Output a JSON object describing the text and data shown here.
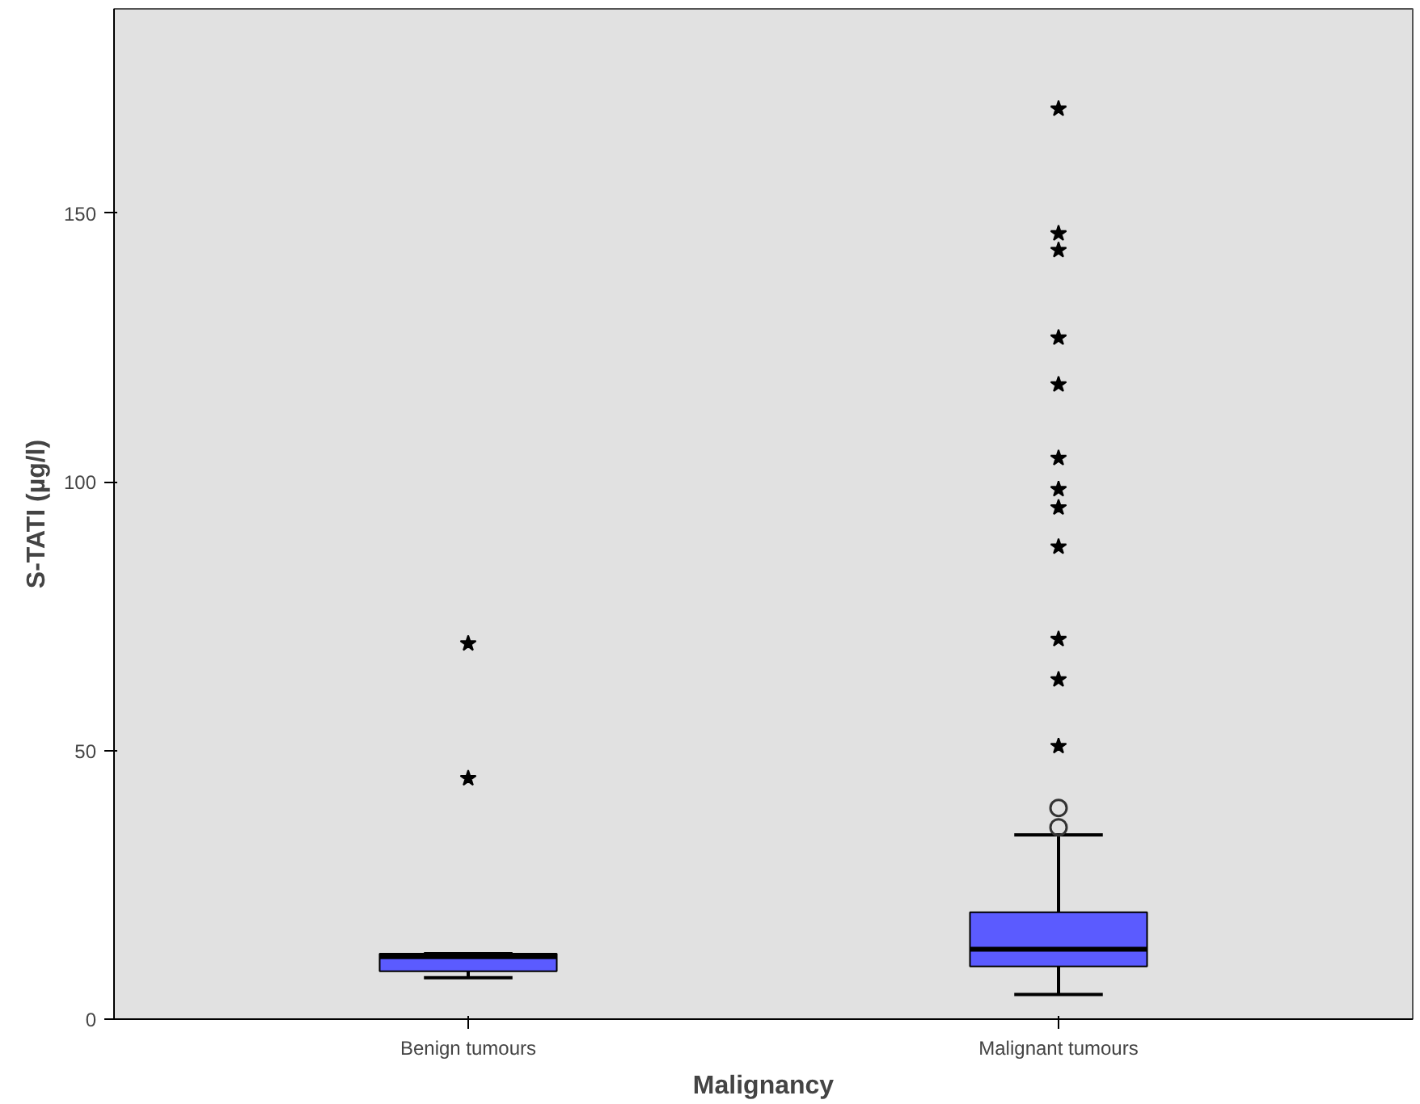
{
  "chart_data": {
    "type": "box",
    "xlabel": "Malignancy",
    "ylabel": "S-TATI (µg/l)",
    "categories": [
      "Benign tumours",
      "Malignant tumours"
    ],
    "boxes": [
      {
        "low": 7.7,
        "q1": 8.9,
        "median": 11.6,
        "q3": 12.2,
        "high": 12.2,
        "outliers": [
          44.8,
          69.9
        ]
      },
      {
        "low": 4.6,
        "q1": 9.8,
        "median": 13.0,
        "q3": 19.9,
        "high": 34.3,
        "outliers": [
          35.7,
          39.3,
          50.8,
          63.2,
          70.7,
          87.9,
          95.2,
          98.6,
          104.4,
          118.1,
          126.8,
          143.1,
          146.2,
          169.4
        ]
      }
    ],
    "color": "#5b5bff",
    "ylim": [
      0,
      188
    ],
    "yticks": [
      0,
      50,
      100,
      150
    ],
    "grid": false
  }
}
